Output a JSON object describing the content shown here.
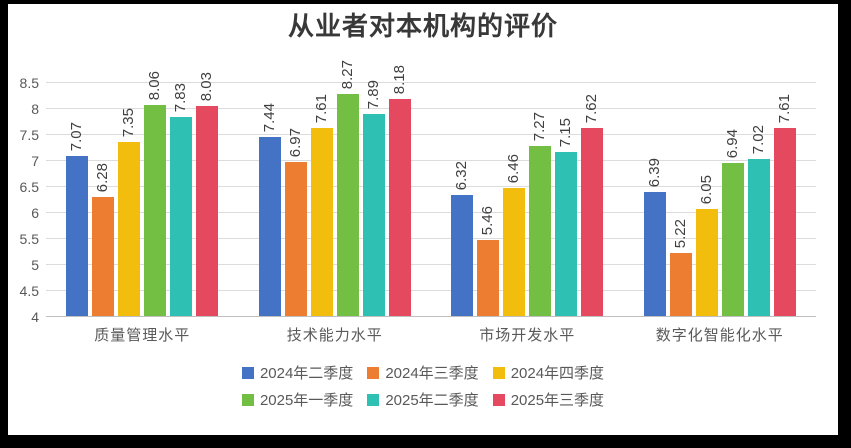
{
  "window": {
    "background": "#ffffff",
    "frame_color": "#000000"
  },
  "chart_data": {
    "type": "bar",
    "title": "从业者对本机构的评价",
    "categories": [
      "质量管理水平",
      "技术能力水平",
      "市场开发水平",
      "数字化智能化水平"
    ],
    "series": [
      {
        "name": "2024年二季度",
        "color": "#4472C4",
        "values": [
          7.07,
          7.44,
          6.32,
          6.39
        ]
      },
      {
        "name": "2024年三季度",
        "color": "#ED7D31",
        "values": [
          6.28,
          6.97,
          5.46,
          5.22
        ]
      },
      {
        "name": "2024年四季度",
        "color": "#F2BD0C",
        "values": [
          7.35,
          7.61,
          6.46,
          6.05
        ]
      },
      {
        "name": "2025年一季度",
        "color": "#72BF44",
        "values": [
          8.06,
          8.27,
          7.27,
          6.94
        ]
      },
      {
        "name": "2025年二季度",
        "color": "#2EC0B2",
        "values": [
          7.83,
          7.89,
          7.15,
          7.02
        ]
      },
      {
        "name": "2025年三季度",
        "color": "#E4495F",
        "values": [
          8.03,
          8.18,
          7.62,
          7.61
        ]
      }
    ],
    "y_axis": {
      "min": 4,
      "max": 8.5,
      "step": 0.5,
      "tick_labels": [
        "4",
        "4.5",
        "5",
        "5.5",
        "6",
        "6.5",
        "7",
        "7.5",
        "8",
        "8.5"
      ]
    },
    "grid": true,
    "legend_position": "bottom",
    "legend_items_per_row": 3,
    "data_labels": {
      "show": true,
      "decimals": 2,
      "rotation": "90-ccw"
    }
  },
  "styles": {
    "title_color": "#383838",
    "tick_label_color": "#595959",
    "category_label_color": "#595959",
    "legend_label_color": "#595959",
    "data_label_color": "#3F3F3F",
    "gridline_color": "#DCDCDC",
    "axis_line_color": "#BFBFBF"
  }
}
